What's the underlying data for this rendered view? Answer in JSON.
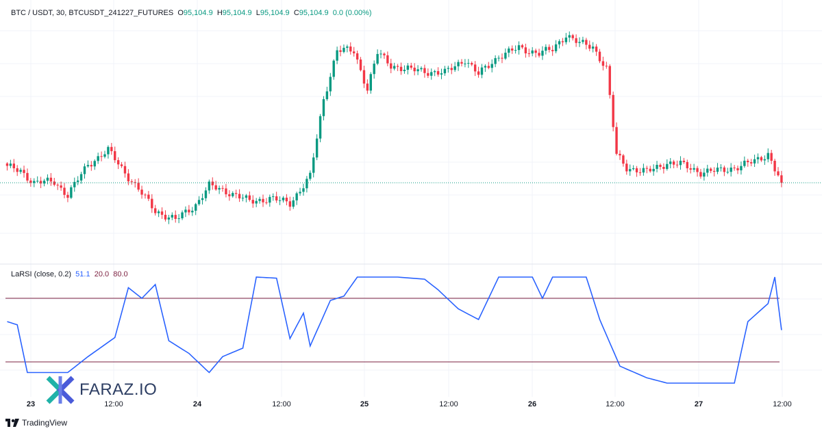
{
  "header": {
    "symbol": "BTC / USDT, 30, BTCUSDT_241227_FUTURES",
    "o_label": "O",
    "o_value": "95,104.9",
    "h_label": "H",
    "h_value": "95,104.9",
    "l_label": "L",
    "l_value": "95,104.9",
    "c_label": "C",
    "c_value": "95,104.9",
    "change": "0.0 (0.00%)"
  },
  "indicator": {
    "name": "LaRSI (close, 0.2)",
    "value": "51.1",
    "lower_level": "20.0",
    "upper_level": "80.0"
  },
  "branding": {
    "tradingview": "TradingView",
    "watermark": "FARAZ.IO"
  },
  "colors": {
    "up": "#089981",
    "down": "#f23645",
    "rsi_line": "#2962ff",
    "levels": "#7b1f3f",
    "grid": "#f0f3fa"
  },
  "chart_data": {
    "type": "candlestick",
    "last_price": 95104.9,
    "x_ticks": [
      "23",
      "12:00",
      "24",
      "12:00",
      "25",
      "12:00",
      "26",
      "12:00",
      "27",
      "12:00"
    ],
    "x_ticks_bold": [
      true,
      false,
      true,
      false,
      true,
      false,
      true,
      false,
      true,
      false
    ],
    "price_anchors": [
      [
        0,
        95600
      ],
      [
        4,
        95500
      ],
      [
        8,
        95100
      ],
      [
        14,
        95150
      ],
      [
        18,
        94700
      ],
      [
        24,
        95700
      ],
      [
        30,
        96150
      ],
      [
        36,
        95300
      ],
      [
        44,
        94200
      ],
      [
        50,
        93900
      ],
      [
        56,
        94400
      ],
      [
        60,
        95000
      ],
      [
        66,
        94800
      ],
      [
        72,
        94500
      ],
      [
        78,
        94600
      ],
      [
        84,
        94450
      ],
      [
        90,
        95300
      ],
      [
        94,
        97800
      ],
      [
        98,
        99400
      ],
      [
        103,
        99350
      ],
      [
        107,
        98150
      ],
      [
        110,
        99300
      ],
      [
        114,
        98900
      ],
      [
        120,
        98750
      ],
      [
        130,
        98650
      ],
      [
        136,
        99100
      ],
      [
        140,
        98600
      ],
      [
        146,
        99200
      ],
      [
        152,
        99450
      ],
      [
        158,
        99300
      ],
      [
        162,
        99400
      ],
      [
        166,
        99900
      ],
      [
        170,
        99600
      ],
      [
        174,
        99500
      ],
      [
        178,
        98800
      ],
      [
        181,
        96000
      ],
      [
        184,
        95600
      ],
      [
        190,
        95450
      ],
      [
        196,
        95750
      ],
      [
        200,
        95700
      ],
      [
        206,
        95450
      ],
      [
        212,
        95500
      ],
      [
        218,
        95650
      ],
      [
        222,
        95800
      ],
      [
        226,
        96050
      ],
      [
        228,
        95550
      ],
      [
        230,
        95104.9
      ]
    ],
    "rsi": {
      "anchors": [
        [
          0,
          58
        ],
        [
          3,
          55
        ],
        [
          6,
          10
        ],
        [
          12,
          10
        ],
        [
          18,
          10
        ],
        [
          24,
          25
        ],
        [
          32,
          43
        ],
        [
          36,
          90
        ],
        [
          40,
          80
        ],
        [
          44,
          93
        ],
        [
          48,
          40
        ],
        [
          54,
          28
        ],
        [
          60,
          10
        ],
        [
          64,
          25
        ],
        [
          70,
          33
        ],
        [
          74,
          100
        ],
        [
          80,
          99
        ],
        [
          84,
          42
        ],
        [
          88,
          66
        ],
        [
          90,
          35
        ],
        [
          96,
          78
        ],
        [
          100,
          82
        ],
        [
          104,
          100
        ],
        [
          116,
          100
        ],
        [
          124,
          98
        ],
        [
          128,
          88
        ],
        [
          134,
          70
        ],
        [
          140,
          60
        ],
        [
          146,
          100
        ],
        [
          152,
          100
        ],
        [
          156,
          100
        ],
        [
          159,
          80
        ],
        [
          162,
          100
        ],
        [
          172,
          100
        ],
        [
          176,
          60
        ],
        [
          182,
          16
        ],
        [
          190,
          5
        ],
        [
          196,
          0
        ],
        [
          216,
          0
        ],
        [
          220,
          58
        ],
        [
          226,
          75
        ],
        [
          228,
          100
        ],
        [
          230,
          50
        ]
      ],
      "lower_level": 20,
      "upper_level": 80,
      "current": 51.1
    }
  }
}
